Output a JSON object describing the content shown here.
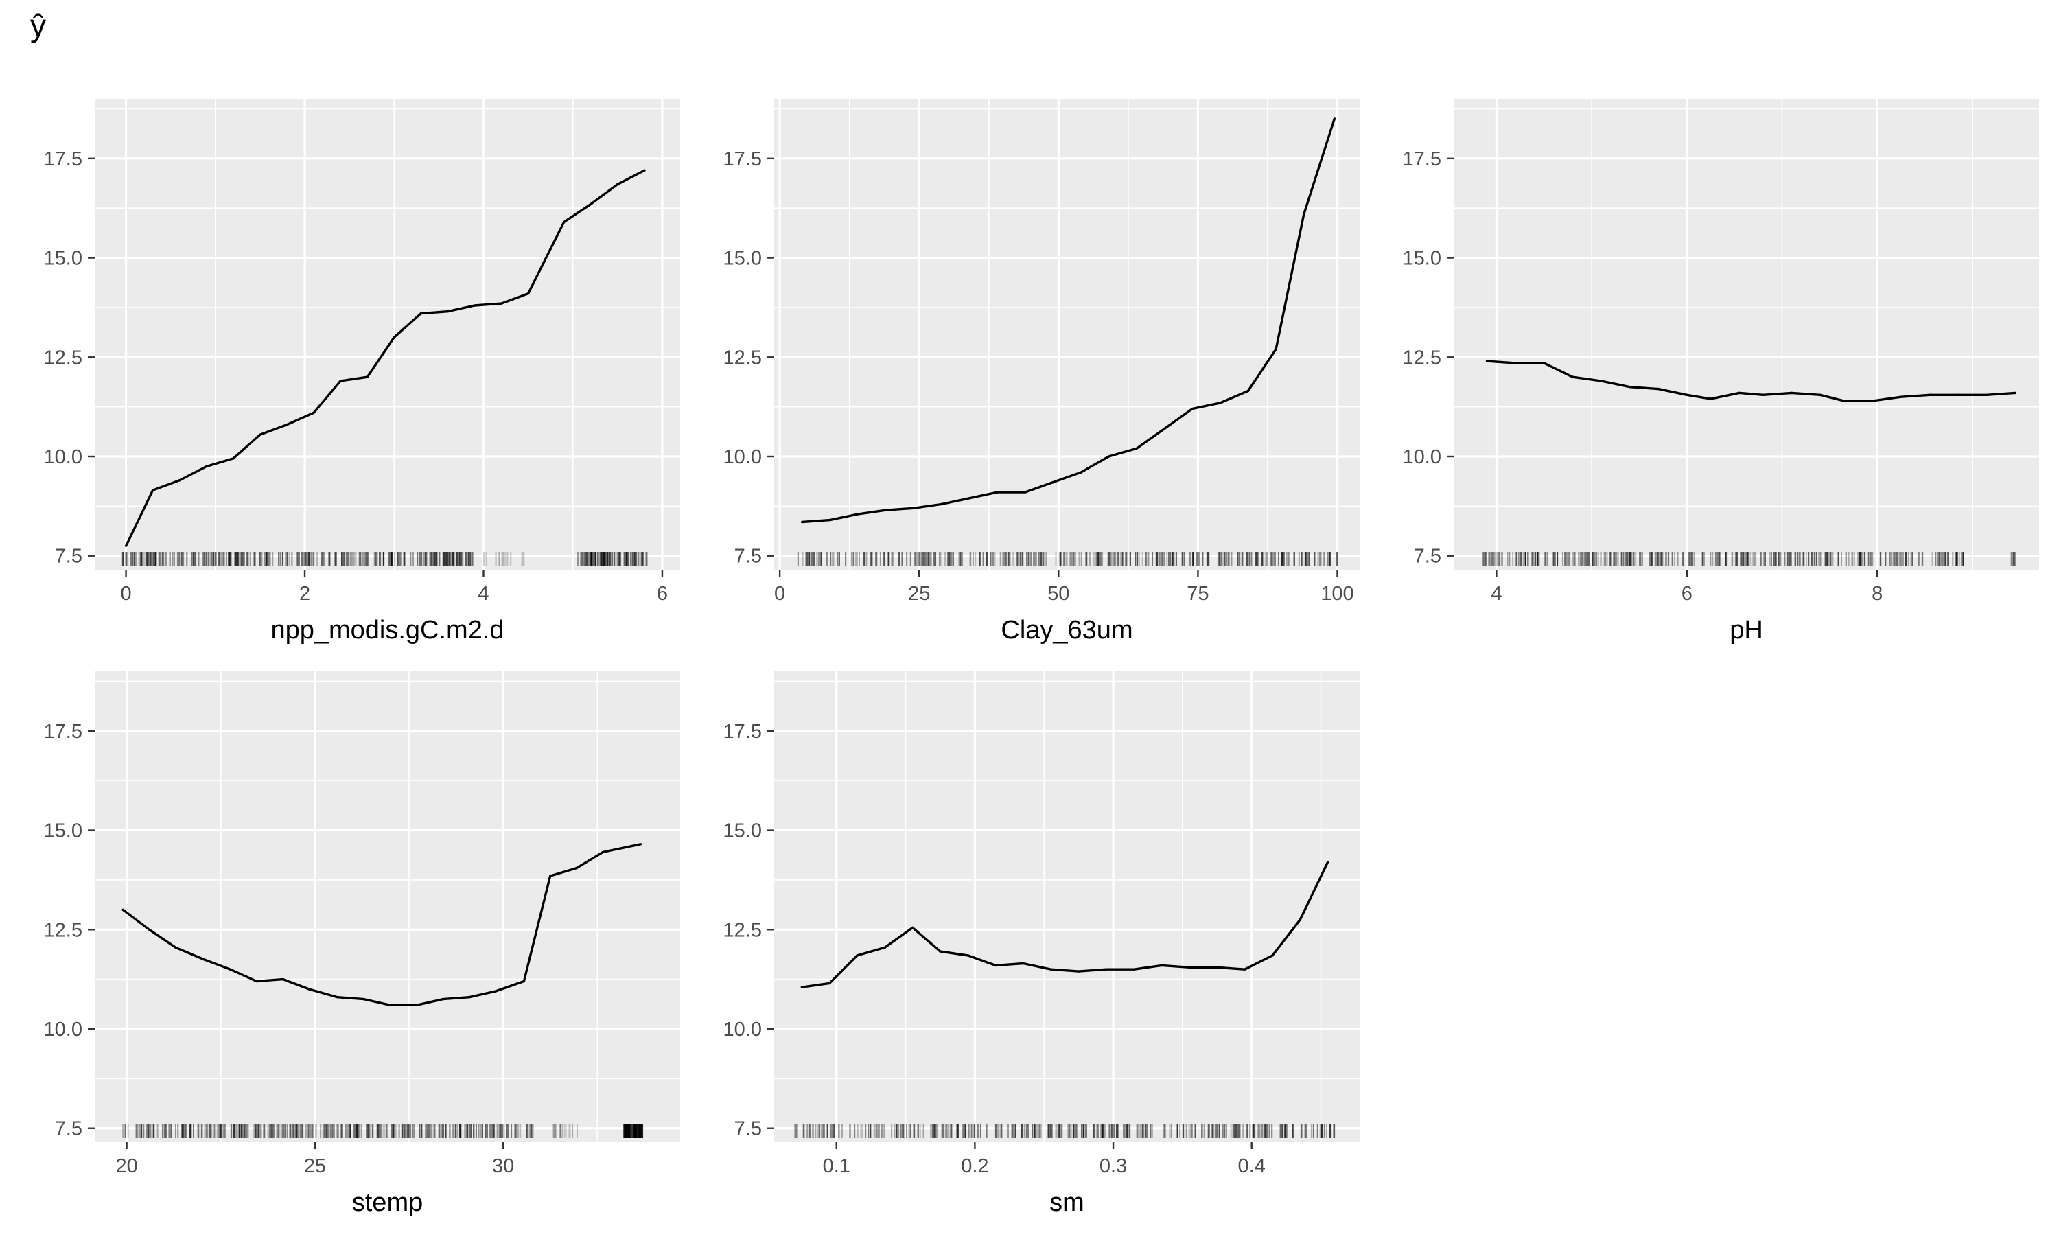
{
  "figure": {
    "y_label": "ŷ"
  },
  "chart_data": [
    {
      "type": "line",
      "xlabel": "npp_modis.gC.m2.d",
      "ylabel": "",
      "xlim": [
        -0.35,
        6.2
      ],
      "ylim": [
        7.15,
        19.0
      ],
      "x_ticks": [
        0,
        2,
        4,
        6
      ],
      "y_ticks": [
        7.5,
        10.0,
        12.5,
        15.0,
        17.5
      ],
      "grid": true,
      "x": [
        0.0,
        0.3,
        0.6,
        0.9,
        1.2,
        1.5,
        1.8,
        2.1,
        2.4,
        2.7,
        3.0,
        3.3,
        3.6,
        3.9,
        4.2,
        4.5,
        4.9,
        5.2,
        5.5,
        5.8
      ],
      "y": [
        7.75,
        9.15,
        9.4,
        9.75,
        9.95,
        10.55,
        10.8,
        11.1,
        11.9,
        12.0,
        13.0,
        13.6,
        13.65,
        13.8,
        13.85,
        14.1,
        15.9,
        16.35,
        16.85,
        17.2
      ],
      "rug": {
        "dense_ranges": [
          [
            -0.05,
            3.9
          ]
        ],
        "sparse_ranges": [
          [
            4.0,
            4.5
          ]
        ],
        "dense_ranges_2": [
          [
            5.05,
            5.85
          ]
        ]
      }
    },
    {
      "type": "line",
      "xlabel": "Clay_63um",
      "ylabel": "",
      "xlim": [
        -1,
        104
      ],
      "ylim": [
        7.15,
        19.0
      ],
      "x_ticks": [
        0,
        25,
        50,
        75,
        100
      ],
      "y_ticks": [
        7.5,
        10.0,
        12.5,
        15.0,
        17.5
      ],
      "grid": true,
      "x": [
        4,
        9,
        14,
        19,
        24,
        29,
        34,
        39,
        44,
        49,
        54,
        59,
        64,
        69,
        74,
        79,
        84,
        89,
        94,
        99.5
      ],
      "y": [
        8.35,
        8.4,
        8.55,
        8.65,
        8.7,
        8.8,
        8.95,
        9.1,
        9.1,
        9.35,
        9.6,
        10.0,
        10.2,
        10.7,
        11.2,
        11.35,
        11.65,
        12.7,
        16.1,
        18.5
      ],
      "rug": {
        "dense_ranges": [
          [
            3,
            100
          ]
        ]
      }
    },
    {
      "type": "line",
      "xlabel": "pH",
      "ylabel": "",
      "xlim": [
        3.55,
        9.7
      ],
      "ylim": [
        7.15,
        19.0
      ],
      "x_ticks": [
        4,
        6,
        8
      ],
      "y_ticks": [
        7.5,
        10.0,
        12.5,
        15.0,
        17.5
      ],
      "grid": true,
      "x": [
        3.9,
        4.2,
        4.5,
        4.8,
        5.1,
        5.4,
        5.7,
        6.0,
        6.25,
        6.55,
        6.8,
        7.1,
        7.4,
        7.65,
        7.95,
        8.25,
        8.55,
        8.85,
        9.15,
        9.45
      ],
      "y": [
        12.4,
        12.35,
        12.35,
        12.0,
        11.9,
        11.75,
        11.7,
        11.55,
        11.45,
        11.6,
        11.55,
        11.6,
        11.55,
        11.4,
        11.4,
        11.5,
        11.55,
        11.55,
        11.55,
        11.6
      ],
      "rug": {
        "dense_ranges": [
          [
            3.85,
            9.0
          ]
        ],
        "sparse_ranges": [
          [
            9.4,
            9.45
          ]
        ]
      }
    },
    {
      "type": "line",
      "xlabel": "stemp",
      "ylabel": "",
      "xlim": [
        19.15,
        34.7
      ],
      "ylim": [
        7.15,
        19.0
      ],
      "x_ticks": [
        20,
        25,
        30
      ],
      "y_ticks": [
        7.5,
        10.0,
        12.5,
        15.0,
        17.5
      ],
      "grid": true,
      "x": [
        19.9,
        20.6,
        21.3,
        22.05,
        22.75,
        23.45,
        24.15,
        24.85,
        25.6,
        26.3,
        27.0,
        27.7,
        28.4,
        29.1,
        29.8,
        30.55,
        31.25,
        31.95,
        32.65,
        33.65
      ],
      "y": [
        13.0,
        12.5,
        12.05,
        11.75,
        11.5,
        11.2,
        11.25,
        11.0,
        10.8,
        10.75,
        10.6,
        10.6,
        10.75,
        10.8,
        10.95,
        11.2,
        13.85,
        14.05,
        14.45,
        14.65
      ],
      "rug": {
        "dense_ranges": [
          [
            19.9,
            30.8
          ]
        ],
        "sparse_ranges": [
          [
            31.3,
            32.0
          ]
        ],
        "dense_ranges_2": [
          [
            33.2,
            33.7
          ]
        ]
      }
    },
    {
      "type": "line",
      "xlabel": "sm",
      "ylabel": "",
      "xlim": [
        0.055,
        0.478
      ],
      "ylim": [
        7.15,
        19.0
      ],
      "x_ticks": [
        0.1,
        0.2,
        0.3,
        0.4
      ],
      "y_ticks": [
        7.5,
        10.0,
        12.5,
        15.0,
        17.5
      ],
      "grid": true,
      "x": [
        0.075,
        0.095,
        0.115,
        0.135,
        0.155,
        0.175,
        0.195,
        0.215,
        0.235,
        0.255,
        0.275,
        0.295,
        0.315,
        0.335,
        0.355,
        0.375,
        0.395,
        0.415,
        0.435,
        0.455
      ],
      "y": [
        11.05,
        11.15,
        11.85,
        12.05,
        12.55,
        11.95,
        11.85,
        11.6,
        11.65,
        11.5,
        11.45,
        11.5,
        11.5,
        11.6,
        11.55,
        11.55,
        11.5,
        11.85,
        12.75,
        14.2
      ],
      "rug": {
        "dense_ranges": [
          [
            0.07,
            0.46
          ]
        ]
      }
    }
  ]
}
